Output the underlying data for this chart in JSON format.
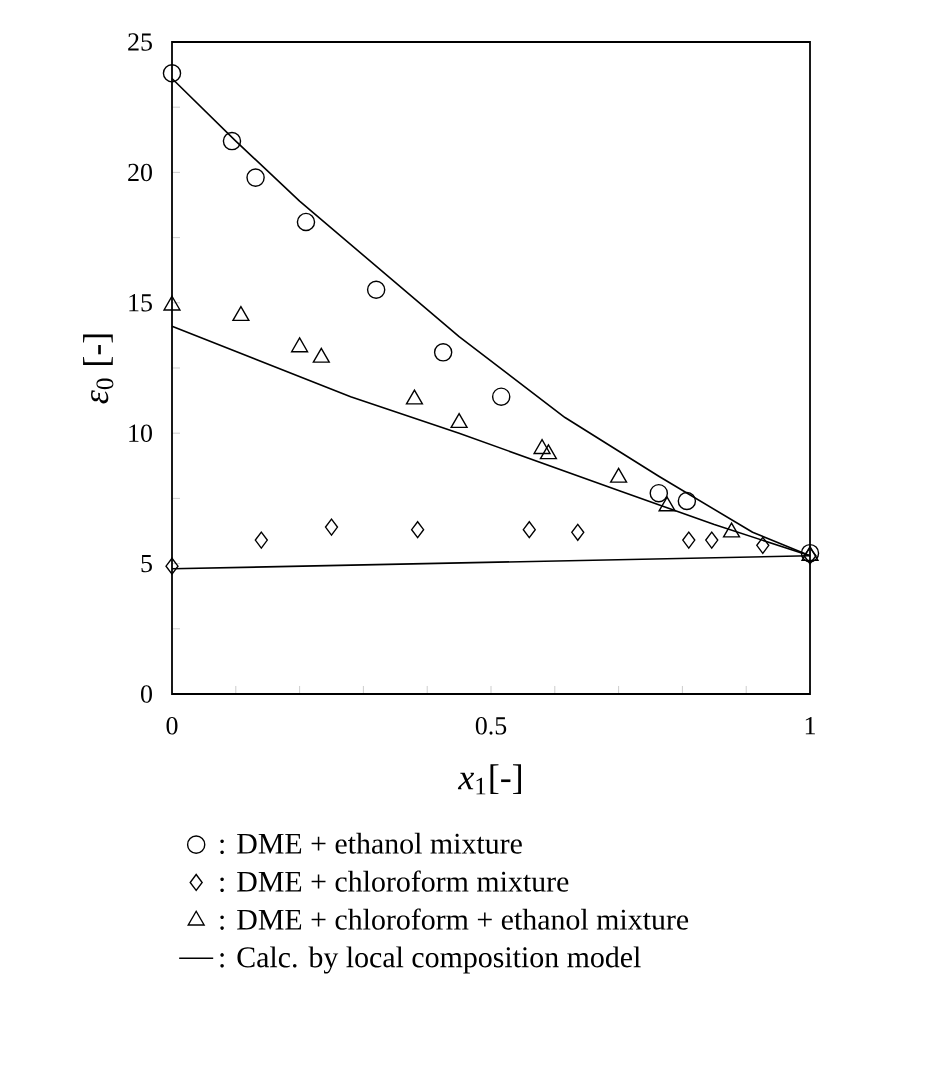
{
  "chart_data": {
    "type": "scatter",
    "xlabel": "*x*$_{1}$[-]",
    "ylabel": "*ε*$_{0}$ [-]",
    "xlim": [
      0,
      1
    ],
    "ylim": [
      0,
      25
    ],
    "xticks": [
      0,
      {
        "value": 0.1,
        "label": null
      },
      {
        "value": 0.2,
        "label": null
      },
      {
        "value": 0.3,
        "label": null
      },
      {
        "value": 0.4,
        "label": null
      },
      0.5,
      {
        "value": 0.6,
        "label": null
      },
      {
        "value": 0.7,
        "label": null
      },
      {
        "value": 0.8,
        "label": null
      },
      {
        "value": 0.9,
        "label": null
      },
      1
    ],
    "yticks": [
      0,
      {
        "value": 2.5,
        "label": null
      },
      5,
      {
        "value": 7.5,
        "label": null
      },
      10,
      {
        "value": 12.5,
        "label": null
      },
      15,
      {
        "value": 17.5,
        "label": null
      },
      20,
      {
        "value": 22.5,
        "label": null
      },
      25
    ],
    "grid": false,
    "legend": "bottom",
    "series": [
      {
        "name": ": DME + ethanol mixture",
        "color": "#000000",
        "marker": "circle",
        "x": [
          0,
          0.094,
          0.131,
          0.21,
          0.32,
          0.425,
          0.516,
          0.763,
          0.807,
          1
        ],
        "values": [
          23.8,
          21.2,
          19.8,
          18.1,
          15.5,
          13.1,
          11.4,
          7.7,
          7.4,
          5.4
        ]
      },
      {
        "name": ": DME + chloroform mixture",
        "color": "#000000",
        "marker": "diamond",
        "x": [
          0,
          0.14,
          0.25,
          0.385,
          0.56,
          0.636,
          0.81,
          0.846,
          0.926,
          1
        ],
        "values": [
          4.9,
          5.9,
          6.4,
          6.3,
          6.3,
          6.2,
          5.9,
          5.9,
          5.7,
          5.3
        ]
      },
      {
        "name": ": DME + chloroform + ethanol mixture",
        "color": "#000000",
        "marker": "triangle",
        "x": [
          0,
          0.108,
          0.2,
          0.234,
          0.38,
          0.45,
          0.58,
          0.59,
          0.7,
          0.776,
          0.877,
          1
        ],
        "values": [
          14.9,
          14.5,
          13.3,
          12.9,
          11.3,
          10.4,
          9.4,
          9.2,
          8.3,
          7.2,
          6.2,
          5.3
        ]
      },
      {
        "name": ": Calc. by local composition model",
        "type": "line",
        "color": "#000000",
        "marker": "none",
        "x": [
          0,
          0.1,
          0.2,
          0.45,
          0.616,
          0.763,
          0.91,
          1
        ],
        "values": [
          23.6,
          21.2,
          18.9,
          13.7,
          10.6,
          8.35,
          6.2,
          5.3
        ]
      },
      {
        "type": "line",
        "color": "#000000",
        "marker": "none",
        "x": [
          0,
          0.28,
          0.45,
          0.7,
          0.85,
          1
        ],
        "values": [
          14.1,
          11.4,
          10.0,
          7.8,
          6.5,
          5.3
        ]
      },
      {
        "type": "line",
        "color": "#000000",
        "marker": "none",
        "x": [
          0,
          1
        ],
        "values": [
          4.8,
          5.3
        ]
      }
    ]
  }
}
